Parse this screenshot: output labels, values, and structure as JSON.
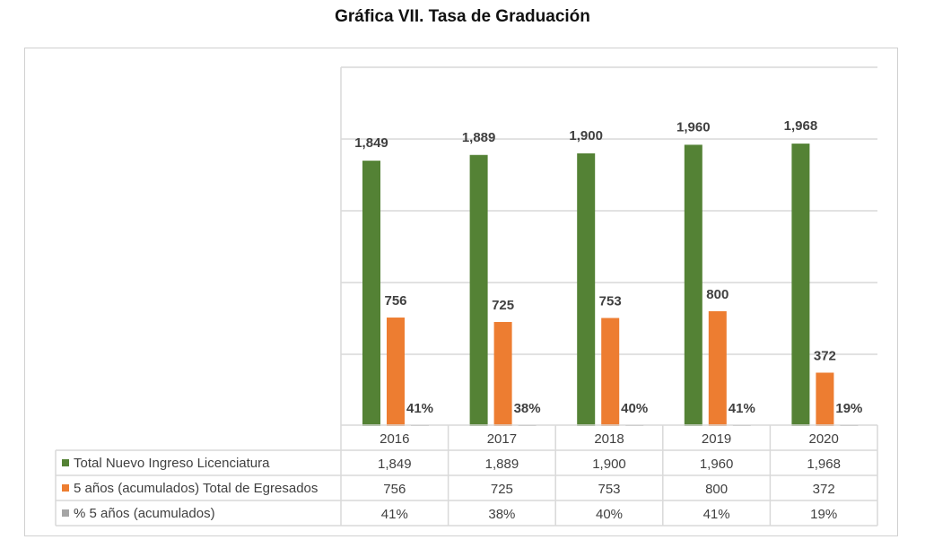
{
  "chart_data": {
    "type": "bar",
    "title": "Gráfica VII. Tasa de Graduación",
    "categories": [
      "2016",
      "2017",
      "2018",
      "2019",
      "2020"
    ],
    "ylim": [
      0,
      2500
    ],
    "grid": true,
    "legend": "data-table",
    "series": [
      {
        "name": "Total Nuevo Ingreso Licenciatura",
        "color": "#548235",
        "values": [
          1849,
          1889,
          1900,
          1960,
          1968
        ],
        "labels": [
          "1,849",
          "1,889",
          "1,900",
          "1,960",
          "1,968"
        ]
      },
      {
        "name": "5 años (acumulados) Total de Egresados",
        "color": "#ed7d31",
        "values": [
          756,
          725,
          753,
          800,
          372
        ],
        "labels": [
          "756",
          "725",
          "753",
          "800",
          "372"
        ]
      },
      {
        "name": "% 5 años (acumulados)",
        "color": "#a5a5a5",
        "values": [
          0.41,
          0.38,
          0.4,
          0.41,
          0.19
        ],
        "labels": [
          "41%",
          "38%",
          "40%",
          "41%",
          "19%"
        ]
      }
    ]
  }
}
